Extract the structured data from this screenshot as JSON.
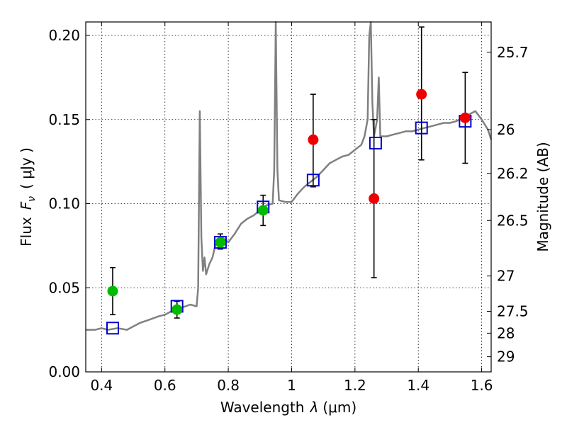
{
  "chart_data": {
    "type": "scatter",
    "xlabel_main": "Wavelength",
    "xlabel_symbol": "λ",
    "xlabel_unit": "(μm)",
    "ylabel_main": "Flux",
    "ylabel_symbol": "F",
    "ylabel_subscript": "ν",
    "ylabel_unit": "( μJy )",
    "y2label": "Magnitude (AB)",
    "xlim": [
      0.35,
      1.63
    ],
    "ylim": [
      0.0,
      0.208
    ],
    "x_ticks": [
      0.4,
      0.6,
      0.8,
      1.0,
      1.2,
      1.4,
      1.6
    ],
    "x_tick_labels": [
      "0.4",
      "0.6",
      "0.8",
      "1",
      "1.2",
      "1.4",
      "1.6"
    ],
    "y_ticks": [
      0.0,
      0.05,
      0.1,
      0.15,
      0.2
    ],
    "y_tick_labels": [
      "0.00",
      "0.05",
      "0.10",
      "0.15",
      "0.20"
    ],
    "y2_ticks": [
      {
        "label": "25.7",
        "flux": 0.19
      },
      {
        "label": "26",
        "flux": 0.144
      },
      {
        "label": "26.2",
        "flux": 0.118
      },
      {
        "label": "26.5",
        "flux": 0.09
      },
      {
        "label": "27",
        "flux": 0.057
      },
      {
        "label": "27.5",
        "flux": 0.036
      },
      {
        "label": "28",
        "flux": 0.023
      },
      {
        "label": "29",
        "flux": 0.009
      }
    ],
    "grid": true,
    "colors": {
      "model": "#808080",
      "green": "#00bb00",
      "red": "#ee0000",
      "box": "#0000cc"
    },
    "green_points": [
      {
        "x": 0.435,
        "y": 0.048,
        "ylo": 0.034,
        "yhi": 0.062
      },
      {
        "x": 0.638,
        "y": 0.037,
        "ylo": 0.032,
        "yhi": 0.042
      },
      {
        "x": 0.775,
        "y": 0.077,
        "ylo": 0.073,
        "yhi": 0.082
      },
      {
        "x": 0.91,
        "y": 0.096,
        "ylo": 0.087,
        "yhi": 0.105
      }
    ],
    "red_points": [
      {
        "x": 1.068,
        "y": 0.138,
        "ylo": 0.11,
        "yhi": 0.165
      },
      {
        "x": 1.26,
        "y": 0.103,
        "ylo": 0.056,
        "yhi": 0.15
      },
      {
        "x": 1.41,
        "y": 0.165,
        "ylo": 0.126,
        "yhi": 0.205
      },
      {
        "x": 1.548,
        "y": 0.151,
        "ylo": 0.124,
        "yhi": 0.178
      }
    ],
    "model_points": [
      {
        "x": 0.435,
        "y": 0.026
      },
      {
        "x": 0.638,
        "y": 0.039
      },
      {
        "x": 0.775,
        "y": 0.077
      },
      {
        "x": 0.91,
        "y": 0.098
      },
      {
        "x": 1.068,
        "y": 0.114
      },
      {
        "x": 1.265,
        "y": 0.136
      },
      {
        "x": 1.41,
        "y": 0.145
      },
      {
        "x": 1.548,
        "y": 0.149
      }
    ],
    "model_spectrum": [
      [
        0.35,
        0.025
      ],
      [
        0.38,
        0.025
      ],
      [
        0.4,
        0.026
      ],
      [
        0.42,
        0.025
      ],
      [
        0.45,
        0.026
      ],
      [
        0.48,
        0.025
      ],
      [
        0.5,
        0.027
      ],
      [
        0.52,
        0.029
      ],
      [
        0.55,
        0.031
      ],
      [
        0.58,
        0.033
      ],
      [
        0.6,
        0.034
      ],
      [
        0.62,
        0.036
      ],
      [
        0.65,
        0.038
      ],
      [
        0.68,
        0.04
      ],
      [
        0.7,
        0.039
      ],
      [
        0.705,
        0.05
      ],
      [
        0.71,
        0.155
      ],
      [
        0.715,
        0.08
      ],
      [
        0.72,
        0.06
      ],
      [
        0.725,
        0.068
      ],
      [
        0.73,
        0.058
      ],
      [
        0.74,
        0.064
      ],
      [
        0.75,
        0.068
      ],
      [
        0.76,
        0.076
      ],
      [
        0.78,
        0.08
      ],
      [
        0.8,
        0.077
      ],
      [
        0.82,
        0.082
      ],
      [
        0.84,
        0.088
      ],
      [
        0.86,
        0.091
      ],
      [
        0.88,
        0.093
      ],
      [
        0.9,
        0.096
      ],
      [
        0.92,
        0.099
      ],
      [
        0.94,
        0.1
      ],
      [
        0.945,
        0.12
      ],
      [
        0.95,
        0.208
      ],
      [
        0.955,
        0.12
      ],
      [
        0.96,
        0.102
      ],
      [
        0.98,
        0.101
      ],
      [
        1.0,
        0.101
      ],
      [
        1.02,
        0.106
      ],
      [
        1.04,
        0.11
      ],
      [
        1.06,
        0.113
      ],
      [
        1.08,
        0.116
      ],
      [
        1.1,
        0.12
      ],
      [
        1.12,
        0.124
      ],
      [
        1.14,
        0.126
      ],
      [
        1.16,
        0.128
      ],
      [
        1.18,
        0.129
      ],
      [
        1.2,
        0.132
      ],
      [
        1.22,
        0.135
      ],
      [
        1.23,
        0.14
      ],
      [
        1.24,
        0.15
      ],
      [
        1.245,
        0.2
      ],
      [
        1.25,
        0.208
      ],
      [
        1.255,
        0.16
      ],
      [
        1.26,
        0.14
      ],
      [
        1.27,
        0.15
      ],
      [
        1.275,
        0.175
      ],
      [
        1.28,
        0.14
      ],
      [
        1.3,
        0.14
      ],
      [
        1.32,
        0.141
      ],
      [
        1.34,
        0.142
      ],
      [
        1.36,
        0.143
      ],
      [
        1.38,
        0.143
      ],
      [
        1.4,
        0.144
      ],
      [
        1.42,
        0.145
      ],
      [
        1.44,
        0.146
      ],
      [
        1.46,
        0.147
      ],
      [
        1.48,
        0.148
      ],
      [
        1.5,
        0.148
      ],
      [
        1.52,
        0.149
      ],
      [
        1.54,
        0.151
      ],
      [
        1.56,
        0.153
      ],
      [
        1.58,
        0.155
      ],
      [
        1.6,
        0.15
      ],
      [
        1.62,
        0.144
      ],
      [
        1.63,
        0.138
      ]
    ]
  }
}
